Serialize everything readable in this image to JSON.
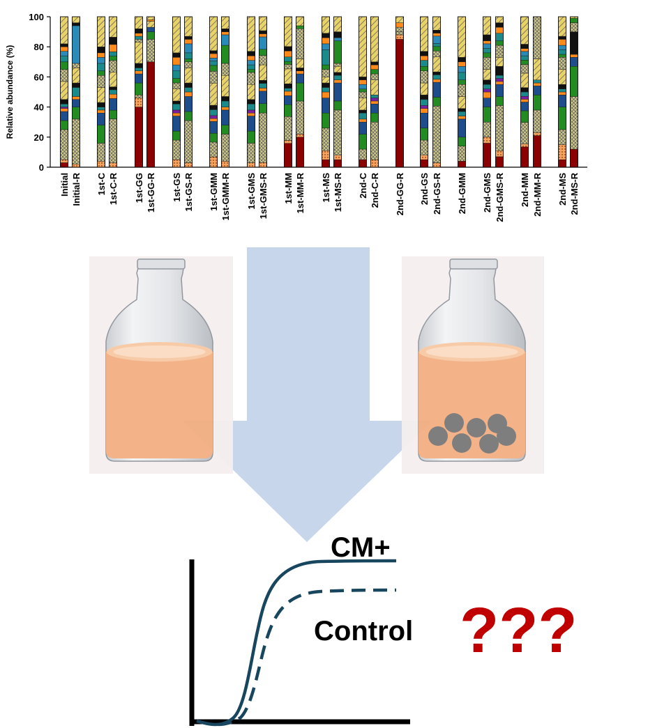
{
  "chart_data": {
    "type": "bar",
    "stacked": true,
    "ylabel": "Relative abundance (%)",
    "ylim": [
      0,
      100
    ],
    "yticks": [
      0,
      20,
      40,
      60,
      80,
      100
    ],
    "categories": [
      "Initial",
      "Initial-R",
      "1st-C",
      "1st-C-R",
      "1st-GG",
      "1st-GG-R",
      "1st-GS",
      "1st-GS-R",
      "1st-GMM",
      "1st-GMM-R",
      "1st-GMS",
      "1st-GMS-R",
      "1st-MM",
      "1st-MM-R",
      "1st-MS",
      "1st-MS-R",
      "2nd-C",
      "2nd-C-R",
      "2nd-GG-R",
      "2nd-GS",
      "2nd-GS-R",
      "2nd-GMM",
      "2nd-GMS",
      "2nd-GMS-R",
      "2nd-MM",
      "2nd-MM-R",
      "2nd-MS",
      "2nd-MS-R"
    ],
    "segment_colors": [
      "#8b0000",
      "#f4a460",
      "#c8c060",
      "#228b22",
      "#1e4d8c",
      "#ff8c1a",
      "#7b1fa2",
      "#1a8a8a",
      "#111111",
      "#e8d36a"
    ],
    "stacks": [
      [
        3,
        2,
        20,
        6,
        6,
        2,
        1,
        2,
        3,
        12,
        8,
        5,
        4,
        3,
        3,
        2,
        18
      ],
      [
        0,
        2,
        30,
        8,
        5,
        2,
        0,
        6,
        3,
        10,
        3,
        0,
        0,
        25,
        0,
        2,
        4
      ],
      [
        0,
        4,
        12,
        12,
        8,
        2,
        0,
        2,
        3,
        10,
        8,
        3,
        5,
        4,
        3,
        4,
        20
      ],
      [
        0,
        3,
        30,
        6,
        8,
        3,
        0,
        3,
        2,
        10,
        8,
        3,
        3,
        0,
        5,
        5,
        14
      ],
      [
        40,
        6,
        2,
        8,
        6,
        2,
        0,
        2,
        3,
        14,
        2,
        0,
        2,
        0,
        2,
        3,
        8
      ],
      [
        70,
        0,
        15,
        5,
        3,
        0,
        0,
        0,
        0,
        4,
        0,
        0,
        0,
        0,
        1,
        0,
        2
      ],
      [
        0,
        5,
        13,
        6,
        10,
        2,
        2,
        4,
        2,
        8,
        4,
        3,
        5,
        4,
        5,
        3,
        24
      ],
      [
        0,
        3,
        28,
        6,
        10,
        3,
        0,
        3,
        3,
        10,
        4,
        2,
        4,
        6,
        3,
        2,
        13
      ],
      [
        0,
        7,
        10,
        6,
        8,
        2,
        2,
        4,
        3,
        15,
        8,
        4,
        3,
        2,
        3,
        2,
        23
      ],
      [
        0,
        4,
        18,
        6,
        10,
        2,
        0,
        4,
        3,
        14,
        8,
        12,
        0,
        7,
        2,
        2,
        8
      ],
      [
        0,
        3,
        13,
        8,
        10,
        2,
        2,
        4,
        3,
        10,
        8,
        2,
        3,
        3,
        3,
        3,
        23
      ],
      [
        0,
        3,
        32,
        6,
        8,
        2,
        0,
        3,
        2,
        10,
        6,
        4,
        0,
        8,
        2,
        2,
        9
      ],
      [
        16,
        2,
        16,
        8,
        6,
        3,
        0,
        2,
        3,
        10,
        3,
        2,
        3,
        0,
        4,
        3,
        20
      ],
      [
        20,
        2,
        22,
        12,
        6,
        2,
        0,
        0,
        2,
        6,
        20,
        2,
        0,
        0,
        0,
        0,
        6
      ],
      [
        5,
        6,
        15,
        10,
        10,
        4,
        0,
        3,
        3,
        4,
        5,
        3,
        10,
        4,
        4,
        3,
        11
      ],
      [
        5,
        3,
        30,
        6,
        12,
        2,
        0,
        3,
        2,
        4,
        2,
        15,
        0,
        2,
        0,
        4,
        10
      ],
      [
        5,
        0,
        7,
        10,
        8,
        2,
        0,
        4,
        2,
        8,
        4,
        2,
        0,
        3,
        3,
        2,
        40
      ],
      [
        0,
        5,
        25,
        6,
        6,
        2,
        2,
        2,
        0,
        10,
        4,
        3,
        0,
        0,
        3,
        2,
        30
      ],
      [
        85,
        3,
        2,
        0,
        0,
        0,
        0,
        0,
        0,
        0,
        3,
        0,
        0,
        0,
        3,
        0,
        4
      ],
      [
        5,
        3,
        10,
        8,
        10,
        3,
        2,
        4,
        3,
        8,
        8,
        3,
        4,
        0,
        3,
        3,
        23
      ],
      [
        0,
        3,
        38,
        6,
        10,
        2,
        0,
        3,
        2,
        10,
        4,
        3,
        2,
        5,
        2,
        2,
        9
      ],
      [
        4,
        0,
        10,
        6,
        12,
        2,
        0,
        3,
        2,
        8,
        8,
        3,
        5,
        4,
        3,
        3,
        27
      ],
      [
        16,
        4,
        10,
        10,
        6,
        4,
        2,
        3,
        3,
        7,
        8,
        3,
        3,
        3,
        2,
        4,
        12
      ],
      [
        7,
        4,
        30,
        6,
        8,
        2,
        2,
        2,
        6,
        6,
        8,
        3,
        5,
        0,
        4,
        3,
        4
      ],
      [
        14,
        2,
        15,
        8,
        6,
        2,
        2,
        3,
        3,
        10,
        6,
        3,
        3,
        3,
        2,
        3,
        19
      ],
      [
        21,
        2,
        15,
        10,
        6,
        2,
        0,
        2,
        0,
        14,
        28,
        0,
        0,
        0,
        0,
        0,
        0
      ],
      [
        5,
        10,
        10,
        15,
        8,
        2,
        0,
        2,
        3,
        10,
        8,
        2,
        3,
        3,
        4,
        2,
        13
      ],
      [
        12,
        0,
        35,
        20,
        6,
        2,
        0,
        0,
        15,
        0,
        6,
        3,
        0,
        0,
        0,
        0,
        1
      ]
    ]
  },
  "labels": {
    "cm_plus": "CM+",
    "control": "Control",
    "question": "???"
  }
}
